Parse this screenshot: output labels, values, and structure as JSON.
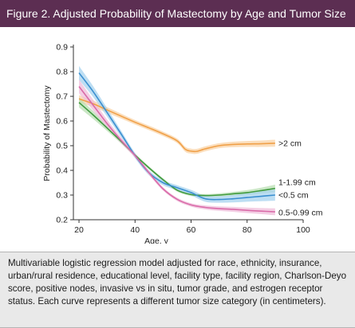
{
  "figure": {
    "title": "Figure 2. Adjusted Probability of Mastectomy by Age and Tumor Size",
    "caption": "Multivariable logistic regression model adjusted for race, ethnicity, insurance, urban/rural residence, educational level, facility type, facility region, Charlson-Deyo score, positive nodes, invasive vs in situ, tumor grade, and estrogen receptor status. Each curve represents a different tumor size category (in centimeters)."
  },
  "colors": {
    "header_bg": "#5c2e52",
    "caption_bg": "#e9e9e9"
  },
  "chart_data": {
    "type": "line",
    "title": "",
    "xlabel": "Age, y",
    "ylabel": "Probability of Mastectomy",
    "xlim": [
      18,
      100
    ],
    "ylim": [
      0.2,
      0.9
    ],
    "x_ticks": [
      20,
      40,
      60,
      80,
      100
    ],
    "y_ticks": [
      0.2,
      0.3,
      0.4,
      0.5,
      0.6,
      0.7,
      0.8,
      0.9
    ],
    "x_tick_labels": [
      "20",
      "40",
      "60",
      "80",
      "100"
    ],
    "y_tick_labels": [
      "0.2",
      "0.3",
      "0.4",
      "0.5",
      "0.6",
      "0.7",
      "0.8",
      "0.9"
    ],
    "grid": false,
    "legend": "inline labels at right end of each curve",
    "series": [
      {
        "name": ">2 cm",
        "color": "#f0a048",
        "band_color": "#f9d3a6",
        "x": [
          20,
          25,
          30,
          35,
          40,
          45,
          50,
          55,
          58,
          60,
          62,
          65,
          70,
          75,
          80,
          85,
          90
        ],
        "y": [
          0.69,
          0.67,
          0.645,
          0.62,
          0.595,
          0.572,
          0.548,
          0.52,
          0.485,
          0.478,
          0.477,
          0.487,
          0.5,
          0.505,
          0.507,
          0.508,
          0.51
        ],
        "band": [
          0.015,
          0.013,
          0.011,
          0.01,
          0.009,
          0.009,
          0.009,
          0.009,
          0.01,
          0.01,
          0.01,
          0.01,
          0.01,
          0.011,
          0.012,
          0.013,
          0.014
        ]
      },
      {
        "name": "1-1.99 cm",
        "color": "#3f9a3f",
        "band_color": "#b9dfb3",
        "x": [
          20,
          25,
          30,
          35,
          40,
          45,
          50,
          55,
          60,
          65,
          70,
          75,
          80,
          85,
          90
        ],
        "y": [
          0.675,
          0.625,
          0.572,
          0.518,
          0.462,
          0.41,
          0.362,
          0.32,
          0.302,
          0.298,
          0.3,
          0.305,
          0.31,
          0.318,
          0.327
        ],
        "band": [
          0.02,
          0.016,
          0.012,
          0.009,
          0.007,
          0.006,
          0.006,
          0.006,
          0.006,
          0.006,
          0.007,
          0.008,
          0.01,
          0.012,
          0.015
        ]
      },
      {
        "name": "<0.5 cm",
        "color": "#3a8fd0",
        "band_color": "#a7d3ef",
        "x": [
          20,
          25,
          30,
          35,
          40,
          45,
          50,
          55,
          60,
          65,
          70,
          75,
          80,
          85,
          90
        ],
        "y": [
          0.795,
          0.72,
          0.635,
          0.548,
          0.46,
          0.39,
          0.35,
          0.33,
          0.31,
          0.285,
          0.282,
          0.285,
          0.29,
          0.295,
          0.3
        ],
        "band": [
          0.028,
          0.022,
          0.017,
          0.013,
          0.011,
          0.01,
          0.01,
          0.01,
          0.011,
          0.012,
          0.013,
          0.015,
          0.017,
          0.02,
          0.023
        ]
      },
      {
        "name": "0.5-0.99 cm",
        "color": "#d96aa8",
        "band_color": "#efbddb",
        "x": [
          20,
          25,
          30,
          35,
          40,
          45,
          50,
          55,
          60,
          65,
          70,
          75,
          80,
          85,
          90
        ],
        "y": [
          0.74,
          0.665,
          0.59,
          0.522,
          0.46,
          0.39,
          0.325,
          0.283,
          0.26,
          0.25,
          0.245,
          0.242,
          0.238,
          0.235,
          0.232
        ],
        "band": [
          0.028,
          0.022,
          0.016,
          0.012,
          0.009,
          0.008,
          0.007,
          0.007,
          0.007,
          0.008,
          0.009,
          0.01,
          0.011,
          0.012,
          0.014
        ]
      }
    ],
    "curve_labels": [
      {
        "text": ">2 cm",
        "y": 0.51
      },
      {
        "text": "1-1.99 cm",
        "y": 0.351
      },
      {
        "text": "<0.5 cm",
        "y": 0.3
      },
      {
        "text": "0.5-0.99 cm",
        "y": 0.229
      }
    ]
  }
}
